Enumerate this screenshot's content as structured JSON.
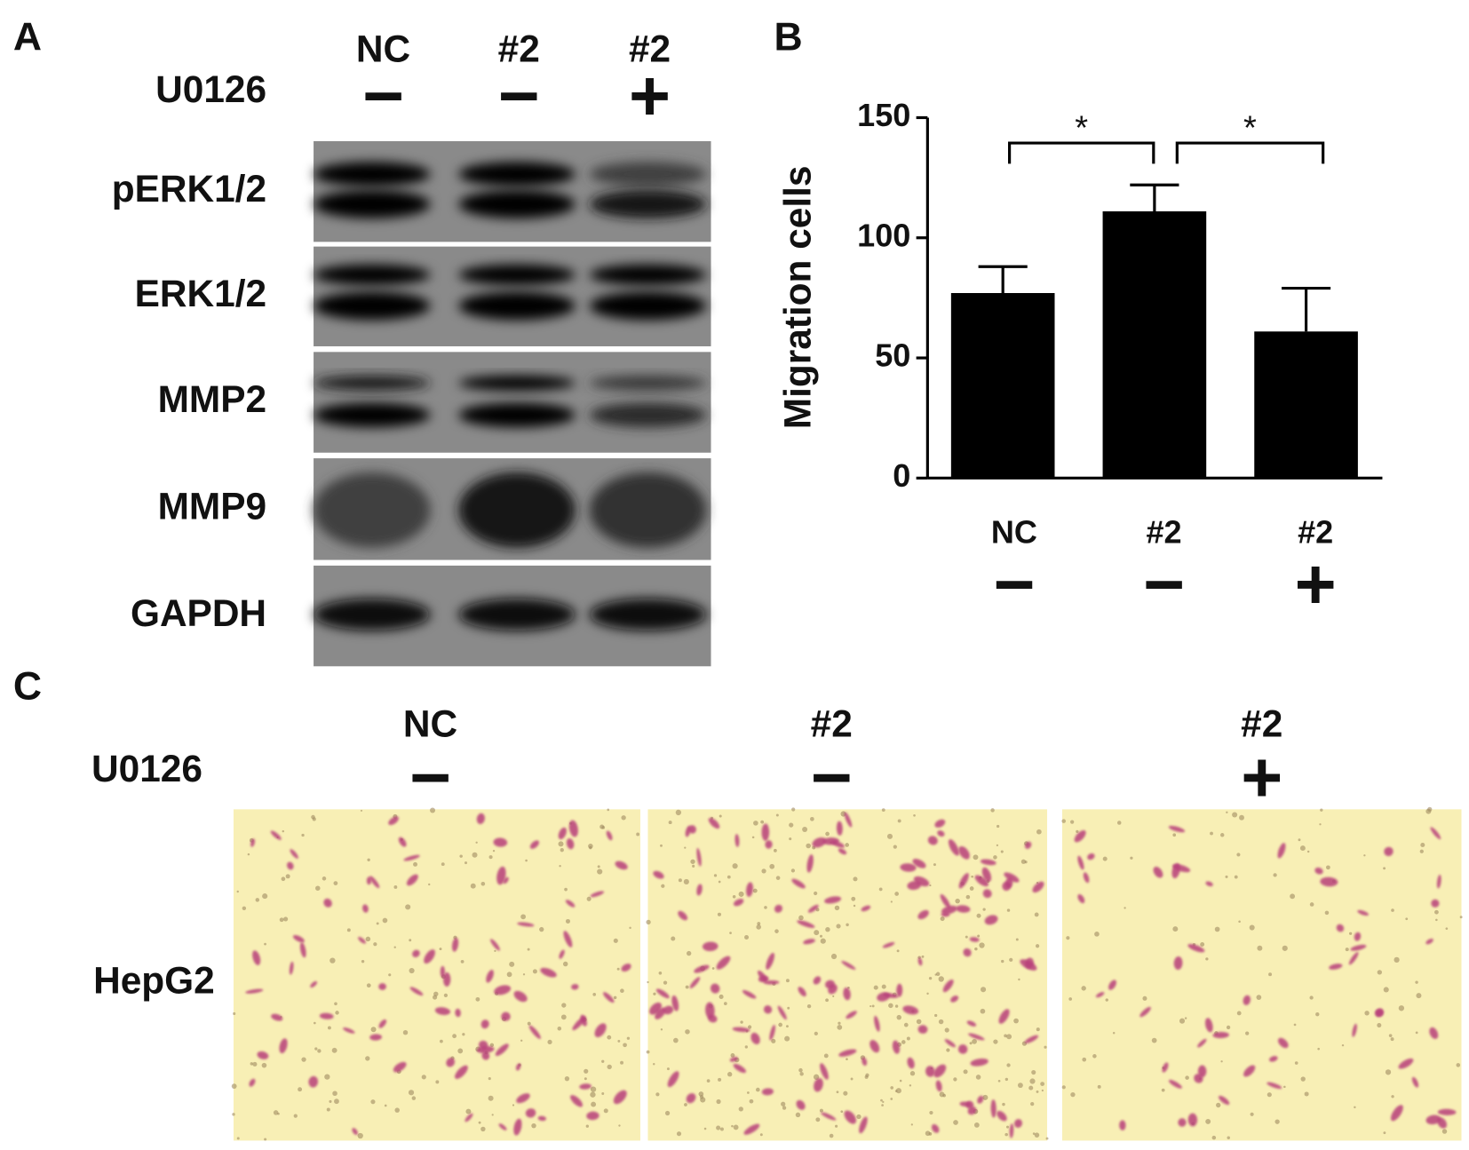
{
  "panel_a": {
    "label": "A",
    "lanes": [
      "NC",
      "#2",
      "#2"
    ],
    "treatment_label": "U0126",
    "treatment": [
      "−",
      "−",
      "+"
    ],
    "rows": [
      "pERK1/2",
      "ERK1/2",
      "MMP2",
      "MMP9",
      "GAPDH"
    ]
  },
  "chart_data": {
    "type": "bar",
    "label": "B",
    "ylabel": "Migration cells",
    "categories": [
      "NC",
      "#2",
      "#2"
    ],
    "sublabels": [
      "−",
      "−",
      "+"
    ],
    "values": [
      77,
      111,
      61
    ],
    "errors": [
      11,
      11,
      18
    ],
    "color": "#000000",
    "ylim": [
      0,
      150
    ],
    "yticks": [
      0,
      50,
      100,
      150
    ],
    "annotations": [
      "*",
      "*"
    ]
  },
  "panel_c": {
    "label": "C",
    "conditions": [
      "NC",
      "#2",
      "#2"
    ],
    "treatment_label": "U0126",
    "treatment": [
      "−",
      "−",
      "+"
    ],
    "cell_line": "HepG2"
  }
}
